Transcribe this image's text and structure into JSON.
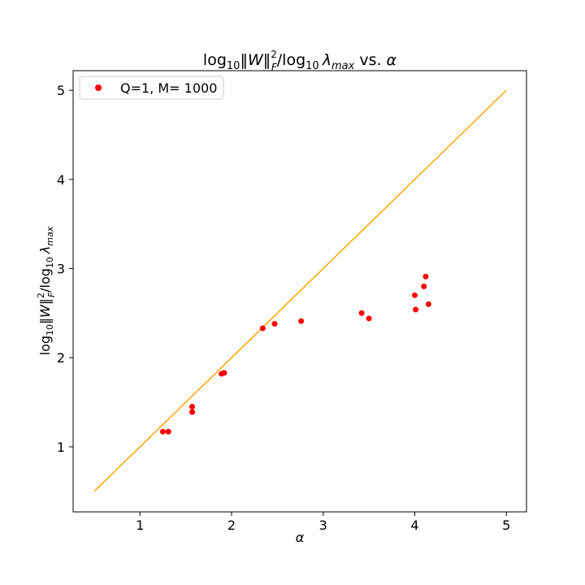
{
  "chart_data": {
    "type": "scatter",
    "title": {
      "prefix": "log",
      "sub1": "10",
      "norm": "‖W‖",
      "sup": "2",
      "subF": "F",
      "slash_log": "/log",
      "sub2": "10",
      "lambda": "λ",
      "submax": "max",
      "vs": " vs. ",
      "alpha": "α"
    },
    "xlabel": "α",
    "ylabel": {
      "prefix": "log",
      "sub1": "10",
      "norm": "‖W‖",
      "sup": "2",
      "subF": "F",
      "slash_log": "/log",
      "sub2": "10",
      "lambda": "λ",
      "submax": "max"
    },
    "xlim": [
      0.27,
      5.22
    ],
    "ylim": [
      0.27,
      5.22
    ],
    "xticks": [
      "1",
      "2",
      "3",
      "4",
      "5"
    ],
    "yticks": [
      "1",
      "2",
      "3",
      "4",
      "5"
    ],
    "legend": {
      "label": "Q=1, M= 1000",
      "location": "upper left"
    },
    "series": [
      {
        "name": "Q=1, M= 1000",
        "color": "#ff0000",
        "points": [
          {
            "x": 1.25,
            "y": 1.17
          },
          {
            "x": 1.31,
            "y": 1.17
          },
          {
            "x": 1.57,
            "y": 1.45
          },
          {
            "x": 1.57,
            "y": 1.39
          },
          {
            "x": 1.89,
            "y": 1.82
          },
          {
            "x": 1.92,
            "y": 1.83
          },
          {
            "x": 2.34,
            "y": 2.33
          },
          {
            "x": 2.47,
            "y": 2.38
          },
          {
            "x": 2.76,
            "y": 2.41
          },
          {
            "x": 3.42,
            "y": 2.5
          },
          {
            "x": 3.5,
            "y": 2.44
          },
          {
            "x": 4.0,
            "y": 2.7
          },
          {
            "x": 4.01,
            "y": 2.54
          },
          {
            "x": 4.1,
            "y": 2.8
          },
          {
            "x": 4.12,
            "y": 2.91
          },
          {
            "x": 4.15,
            "y": 2.6
          }
        ]
      }
    ],
    "reference_line": {
      "color": "#ffa500",
      "x": [
        0.5,
        5.0
      ],
      "y": [
        0.5,
        5.0
      ]
    }
  }
}
